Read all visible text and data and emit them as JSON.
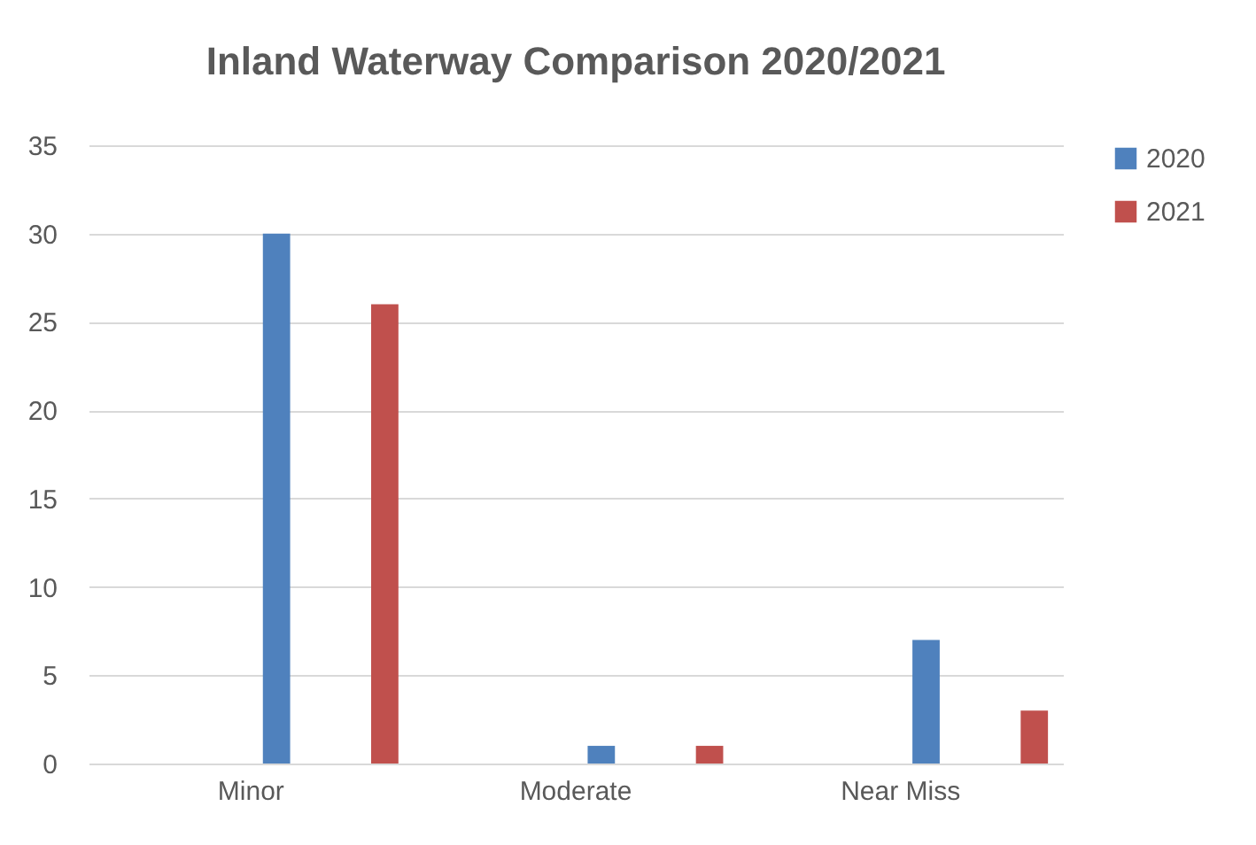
{
  "chart_data": {
    "type": "bar",
    "title": "Inland Waterway Comparison 2020/2021",
    "categories": [
      "Minor",
      "Moderate",
      "Near Miss"
    ],
    "series": [
      {
        "name": "2020",
        "color": "#4f81bd",
        "values": [
          30,
          1,
          7
        ]
      },
      {
        "name": "2021",
        "color": "#c0504d",
        "values": [
          26,
          1,
          3
        ]
      }
    ],
    "ylim": [
      0,
      35
    ],
    "yticks": [
      0,
      5,
      10,
      15,
      20,
      25,
      30,
      35
    ],
    "grid": "y",
    "legend": "right"
  }
}
